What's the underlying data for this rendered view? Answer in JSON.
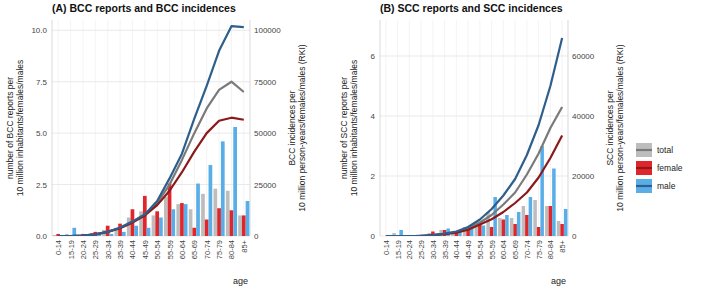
{
  "chart_data": [
    {
      "type": "bar",
      "title": "(A) BCC reports and BCC incidences",
      "xlabel": "age",
      "ylabel": "number of BCC reports per\n10 million inhabitants/females/males",
      "y2label": "BCC incidences per\n10 million person-years/females/males (RKI)",
      "categories": [
        "0-14",
        "15-19",
        "20-24",
        "25-29",
        "30-34",
        "35-39",
        "40-44",
        "45-49",
        "50-54",
        "55-59",
        "60-64",
        "65-69",
        "70-74",
        "75-79",
        "80-84",
        "85+"
      ],
      "ylim": [
        0,
        10.5
      ],
      "yticks": [
        {
          "value": 0,
          "label": "0.0"
        },
        {
          "value": 2.5,
          "label": "2.5"
        },
        {
          "value": 5,
          "label": "5.0"
        },
        {
          "value": 7.5,
          "label": "7.5"
        },
        {
          "value": 10,
          "label": "10.0"
        }
      ],
      "y2lim": [
        0,
        105000
      ],
      "y2ticks": [
        0,
        25000,
        50000,
        75000,
        100000
      ],
      "grid": true,
      "series": [
        {
          "name": "total",
          "type": "bar",
          "color": "#bdbdbd",
          "values": [
            0.05,
            0.1,
            0.05,
            0.15,
            0.3,
            0.4,
            0.9,
            1.2,
            1.0,
            1.9,
            1.55,
            1.3,
            2.05,
            2.3,
            2.2,
            1.0
          ]
        },
        {
          "name": "female",
          "type": "bar",
          "color": "#e0262b",
          "values": [
            0.1,
            0.0,
            0.1,
            0.2,
            0.5,
            0.6,
            1.3,
            1.95,
            1.2,
            2.55,
            1.6,
            0.4,
            0.8,
            1.35,
            1.25,
            1.0
          ]
        },
        {
          "name": "male",
          "type": "bar",
          "color": "#5aaee8",
          "values": [
            0.0,
            0.4,
            0.05,
            0.1,
            0.1,
            0.2,
            0.5,
            0.4,
            0.9,
            1.3,
            1.55,
            2.55,
            3.45,
            4.6,
            5.3,
            1.7
          ]
        },
        {
          "name": "total",
          "type": "line",
          "axis": "y2",
          "color": "#7a7a7a",
          "values": [
            0,
            0,
            200,
            800,
            2000,
            4000,
            7000,
            10500,
            16000,
            25000,
            37000,
            50000,
            62000,
            71000,
            75000,
            70000
          ]
        },
        {
          "name": "female",
          "type": "line",
          "axis": "y2",
          "color": "#8b1a1a",
          "values": [
            0,
            0,
            200,
            800,
            2000,
            3800,
            6500,
            10000,
            15000,
            22000,
            31000,
            41000,
            50000,
            56000,
            57500,
            56500
          ]
        },
        {
          "name": "male",
          "type": "line",
          "axis": "y2",
          "color": "#2e5f8c",
          "values": [
            0,
            0,
            200,
            800,
            2000,
            4000,
            7000,
            10500,
            17000,
            28000,
            40000,
            57000,
            73000,
            90000,
            102000,
            101500
          ]
        }
      ]
    },
    {
      "type": "bar",
      "title": "(B) SCC reports and SCC incidences",
      "xlabel": "age",
      "ylabel": "number of SCC reports per\n10 million inhabitants/females/males",
      "y2label": "SCC incidences per\n10 million person-years/females/males (RKI)",
      "categories": [
        "0-14",
        "15-19",
        "20-24",
        "25-29",
        "30-34",
        "35-39",
        "40-44",
        "45-49",
        "50-54",
        "55-59",
        "60-64",
        "65-69",
        "70-74",
        "75-79",
        "80-84",
        "85+"
      ],
      "ylim": [
        0,
        7.2
      ],
      "yticks": [
        0,
        2,
        4,
        6
      ],
      "y2lim": [
        0,
        72000
      ],
      "y2ticks": [
        0,
        20000,
        40000,
        60000
      ],
      "grid": true,
      "legend": "right",
      "series": [
        {
          "name": "total",
          "type": "bar",
          "color": "#bdbdbd",
          "values": [
            0,
            0.1,
            0,
            0.05,
            0.1,
            0.2,
            0.15,
            0.3,
            0.4,
            0.8,
            0.6,
            0.6,
            1.0,
            1.2,
            1.0,
            0.5
          ]
        },
        {
          "name": "female",
          "type": "bar",
          "color": "#e0262b",
          "values": [
            0,
            0,
            0,
            0.05,
            0.15,
            0.2,
            0.15,
            0.2,
            0.4,
            0.3,
            0.55,
            0.4,
            0.7,
            0.3,
            1.0,
            0.4
          ]
        },
        {
          "name": "male",
          "type": "bar",
          "color": "#5aaee8",
          "values": [
            0,
            0.2,
            0,
            0.05,
            0.05,
            0.25,
            0.15,
            0.35,
            0.35,
            1.3,
            0.7,
            0.8,
            1.3,
            3.0,
            2.25,
            0.9
          ]
        },
        {
          "name": "total",
          "type": "line",
          "axis": "y2",
          "color": "#7a7a7a",
          "values": [
            0,
            0,
            0,
            0,
            300,
            700,
            1300,
            2500,
            4500,
            7000,
            10500,
            14500,
            20500,
            27500,
            36000,
            43000
          ]
        },
        {
          "name": "female",
          "type": "line",
          "axis": "y2",
          "color": "#8b1a1a",
          "values": [
            0,
            0,
            0,
            0,
            300,
            600,
            1100,
            2100,
            3800,
            5600,
            8000,
            11000,
            14500,
            19500,
            26000,
            33500
          ]
        },
        {
          "name": "male",
          "type": "line",
          "axis": "y2",
          "color": "#2e5f8c",
          "values": [
            0,
            0,
            0,
            0,
            300,
            800,
            1500,
            3000,
            5500,
            9000,
            13500,
            19000,
            27000,
            37000,
            50000,
            66000
          ]
        }
      ]
    }
  ]
}
